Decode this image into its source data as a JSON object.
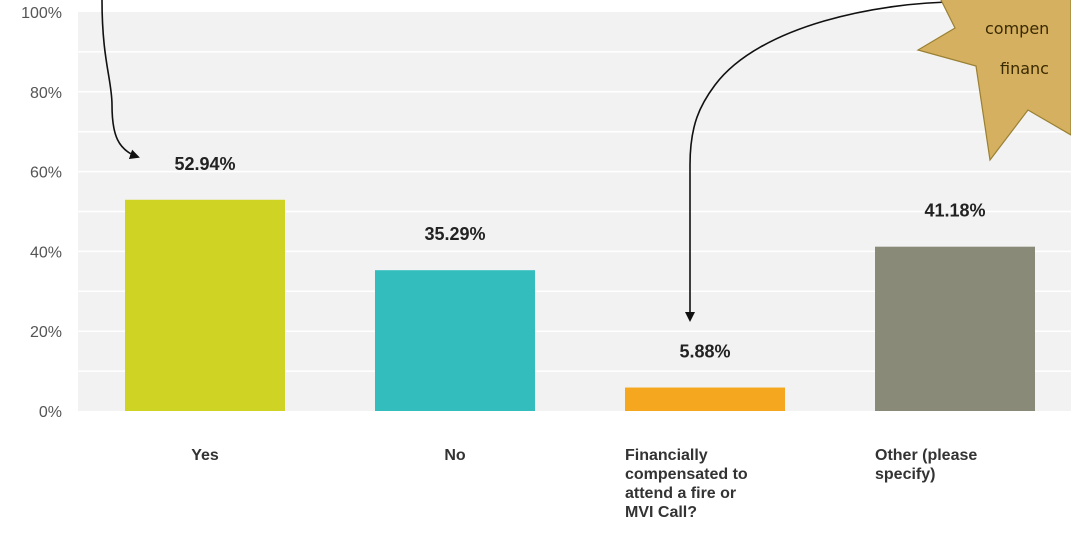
{
  "chart_data": {
    "type": "bar",
    "categories": [
      "Yes",
      "No",
      "Financially compensated to attend a fire or MVI Call?",
      "Other (please specify)"
    ],
    "category_label_lines": [
      [
        "Yes"
      ],
      [
        "No"
      ],
      [
        "Financially",
        "compensated to",
        "attend a fire or",
        "MVI Call?"
      ],
      [
        "Other (please",
        "specify)"
      ]
    ],
    "values": [
      52.94,
      35.29,
      5.88,
      41.18
    ],
    "data_labels": [
      "52.94%",
      "35.29%",
      "5.88%",
      "41.18%"
    ],
    "bar_colors": [
      "#cfd424",
      "#33bdbd",
      "#f5a81f",
      "#8a8a78"
    ],
    "ylim": [
      0,
      100
    ],
    "yticks": [
      0,
      20,
      40,
      60,
      80,
      100
    ],
    "ytick_labels": [
      "0%",
      "20%",
      "40%",
      "60%",
      "80%",
      "100%"
    ],
    "grid": true,
    "title": "",
    "xlabel": "",
    "ylabel": ""
  },
  "callout": {
    "lines": [
      "compen",
      "financ"
    ],
    "fill_color": "#d4b060",
    "stroke_color": "#9a8034"
  },
  "colors": {
    "plot_background": "#f2f2f2",
    "gridline": "#ffffff",
    "arrow": "#111111"
  }
}
